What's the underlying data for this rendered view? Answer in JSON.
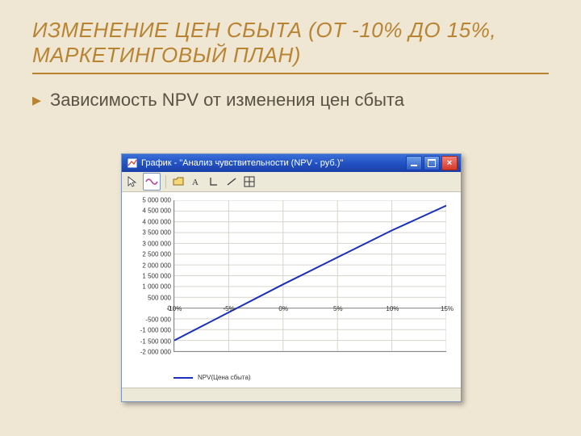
{
  "slide": {
    "background_color": "#efe6d4",
    "title": "ИЗМЕНЕНИЕ ЦЕН СБЫТА (ОТ -10% ДО 15%, МАРКЕТИНГОВЫЙ ПЛАН)",
    "title_color": "#b88432",
    "title_fontsize": 26,
    "underline_color": "#b88432",
    "bullet_glyph": "▸",
    "bullet_text": "Зависимость NPV от изменения цен сбыта",
    "bullet_color": "#5a5344",
    "bullet_fontsize": 22
  },
  "window": {
    "title": "График - \"Анализ чувствительности (NPV - руб.)\"",
    "titlebar_gradient": [
      "#3a6fd8",
      "#1a3fa8"
    ],
    "title_text_color": "#ffffff",
    "frame_background": "#ece9d8"
  },
  "chart": {
    "type": "line",
    "background_color": "#ffffff",
    "grid_color": "#d7d4cc",
    "axis_color": "#888888",
    "tick_font_size": 8,
    "tick_color": "#333333",
    "ylim": [
      -2000000,
      5000000
    ],
    "ytick_step": 500000,
    "yticks": [
      "5 000 000",
      "4 500 000",
      "4 000 000",
      "3 500 000",
      "3 000 000",
      "2 500 000",
      "2 000 000",
      "1 500 000",
      "1 000 000",
      "500 000",
      "0",
      "-500 000",
      "-1 000 000",
      "-1 500 000",
      "-2 000 000"
    ],
    "yvalues": [
      5000000,
      4500000,
      4000000,
      3500000,
      3000000,
      2500000,
      2000000,
      1500000,
      1000000,
      500000,
      0,
      -500000,
      -1000000,
      -1500000,
      -2000000
    ],
    "xlim": [
      -10,
      15
    ],
    "xticks": [
      "-10%",
      "-5%",
      "0%",
      "5%",
      "10%",
      "15%"
    ],
    "xvalues": [
      -10,
      -5,
      0,
      5,
      10,
      15
    ],
    "series": {
      "name": "NPV(Цена сбыта)",
      "color": "#1a2fbc",
      "line_width": 2,
      "x": [
        -10,
        -5,
        0,
        5,
        10,
        15
      ],
      "y": [
        -1500000,
        -200000,
        1100000,
        2350000,
        3600000,
        4750000
      ]
    },
    "legend": {
      "label": "NPV(Цена сбыта)"
    }
  }
}
